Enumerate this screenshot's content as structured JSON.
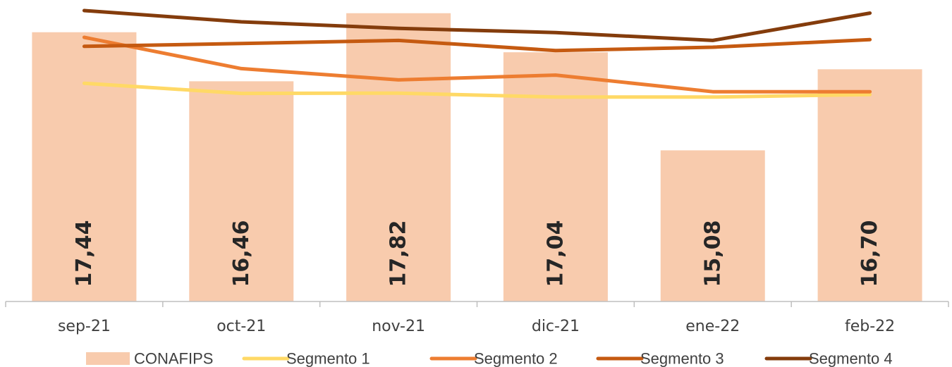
{
  "chart_data": {
    "type": "bar",
    "categories": [
      "sep-21",
      "oct-21",
      "nov-21",
      "dic-21",
      "ene-22",
      "feb-22"
    ],
    "bar_series": {
      "name": "CONAFIPS",
      "values": [
        17.44,
        16.46,
        17.82,
        17.04,
        15.08,
        16.7
      ],
      "labels": [
        "17,44",
        "16,46",
        "17,82",
        "17,04",
        "15,08",
        "16,70"
      ],
      "color": "#F8CBAD"
    },
    "line_series": [
      {
        "name": "Segmento 1",
        "color": "#FFD966",
        "values": [
          20.69,
          20.33,
          20.34,
          20.2,
          20.2,
          20.29
        ]
      },
      {
        "name": "Segmento 2",
        "color": "#ED7D31",
        "values": [
          22.32,
          21.21,
          20.81,
          20.98,
          20.39,
          20.39
        ]
      },
      {
        "name": "Segmento 3",
        "color": "#C55A11",
        "values": [
          22.0,
          22.1,
          22.21,
          21.85,
          21.97,
          22.24
        ]
      },
      {
        "name": "Segmento 4",
        "color": "#843C0C",
        "values": [
          23.27,
          22.87,
          22.64,
          22.49,
          22.21,
          23.18
        ]
      }
    ],
    "legend_position": "bottom",
    "grid": false
  }
}
